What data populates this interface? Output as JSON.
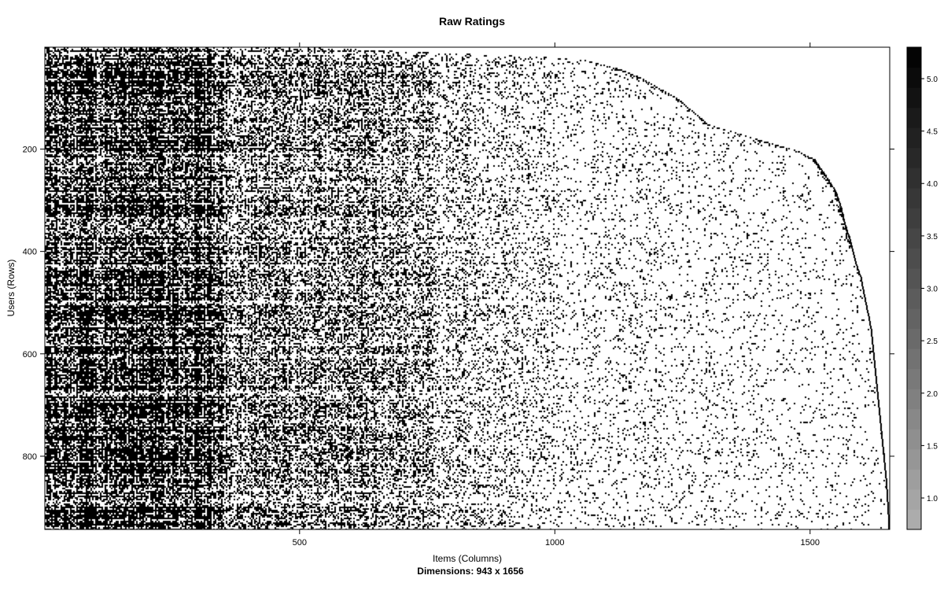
{
  "chart_data": {
    "type": "heatmap",
    "title": "Raw Ratings",
    "xlabel": "Items (Columns)",
    "ylabel": "Users (Rows)",
    "subtitle": "Dimensions: 943 x 1656",
    "rows": 943,
    "cols": 1656,
    "xlim": [
      1,
      1656
    ],
    "ylim": [
      1,
      943
    ],
    "y_reversed": true,
    "x_ticks": [
      500,
      1000,
      1500
    ],
    "x_tick_labels": [
      "500",
      "1000",
      "1500"
    ],
    "y_ticks": [
      200,
      400,
      600,
      800
    ],
    "y_tick_labels": [
      "200",
      "400",
      "600",
      "800"
    ],
    "colorbar": {
      "min": 0.7,
      "max": 5.3,
      "ticks": [
        1.0,
        1.5,
        2.0,
        2.5,
        3.0,
        3.5,
        4.0,
        4.5,
        5.0
      ],
      "tick_labels": [
        "1.0",
        "1.5",
        "2.0",
        "2.5",
        "3.0",
        "3.5",
        "4.0",
        "4.5",
        "5.0"
      ],
      "color_low": "#b0b0b0",
      "color_high": "#000000"
    },
    "cell_color": "#000000",
    "background": "#ffffff",
    "boundary": {
      "rows": [
        1,
        10,
        18,
        25,
        40,
        60,
        80,
        100,
        125,
        150,
        175,
        200,
        220,
        250,
        280,
        310,
        350,
        380,
        400,
        420,
        450,
        500,
        550,
        600,
        650,
        700,
        750,
        800,
        850,
        900,
        943
      ],
      "last_col": [
        540,
        750,
        970,
        1060,
        1120,
        1170,
        1205,
        1240,
        1270,
        1300,
        1380,
        1470,
        1510,
        1530,
        1550,
        1560,
        1570,
        1580,
        1585,
        1590,
        1600,
        1610,
        1620,
        1625,
        1630,
        1635,
        1640,
        1645,
        1650,
        1653,
        1656
      ]
    }
  }
}
